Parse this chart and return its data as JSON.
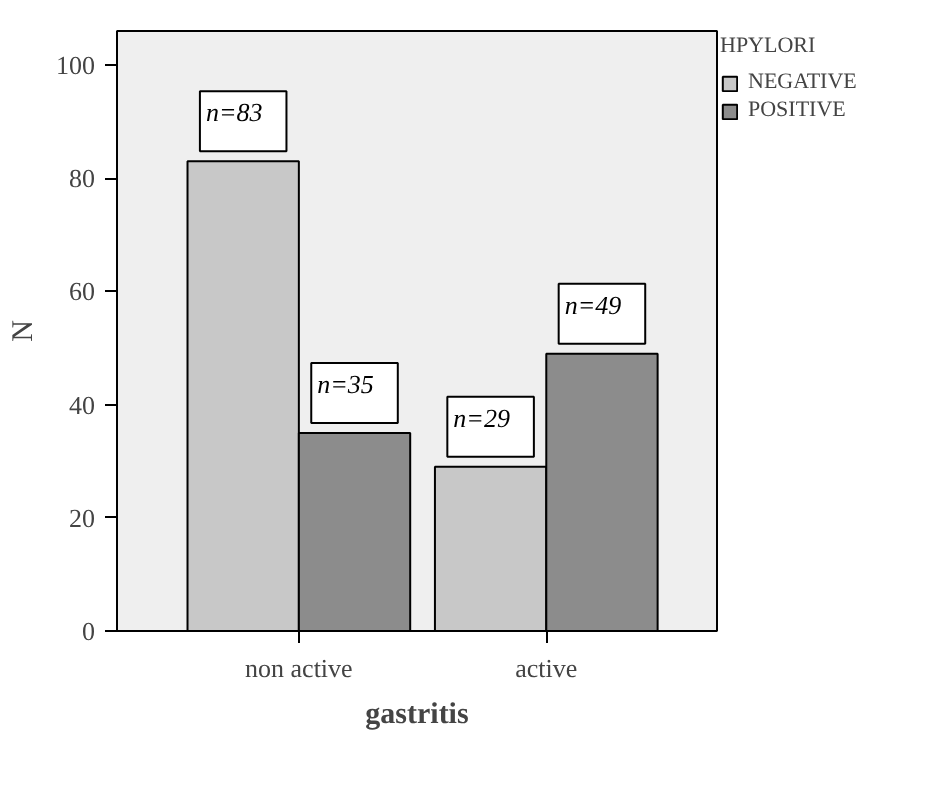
{
  "chart_data": {
    "type": "bar",
    "xlabel": "gastritis",
    "ylabel": "N",
    "legend_title": "HPYLORI",
    "categories": [
      "non active",
      "active"
    ],
    "series": [
      {
        "name": "NEGATIVE",
        "color": "#c8c8c8",
        "values": [
          83,
          29
        ],
        "value_labels": [
          "n=83",
          "n=29"
        ]
      },
      {
        "name": "POSITIVE",
        "color": "#8c8c8c",
        "values": [
          35,
          49
        ],
        "value_labels": [
          "n=35",
          "n=49"
        ]
      }
    ],
    "ylim": [
      0,
      106
    ],
    "yticks": [
      0,
      20,
      40,
      60,
      80,
      100
    ],
    "legend": "top right",
    "grid": false
  }
}
